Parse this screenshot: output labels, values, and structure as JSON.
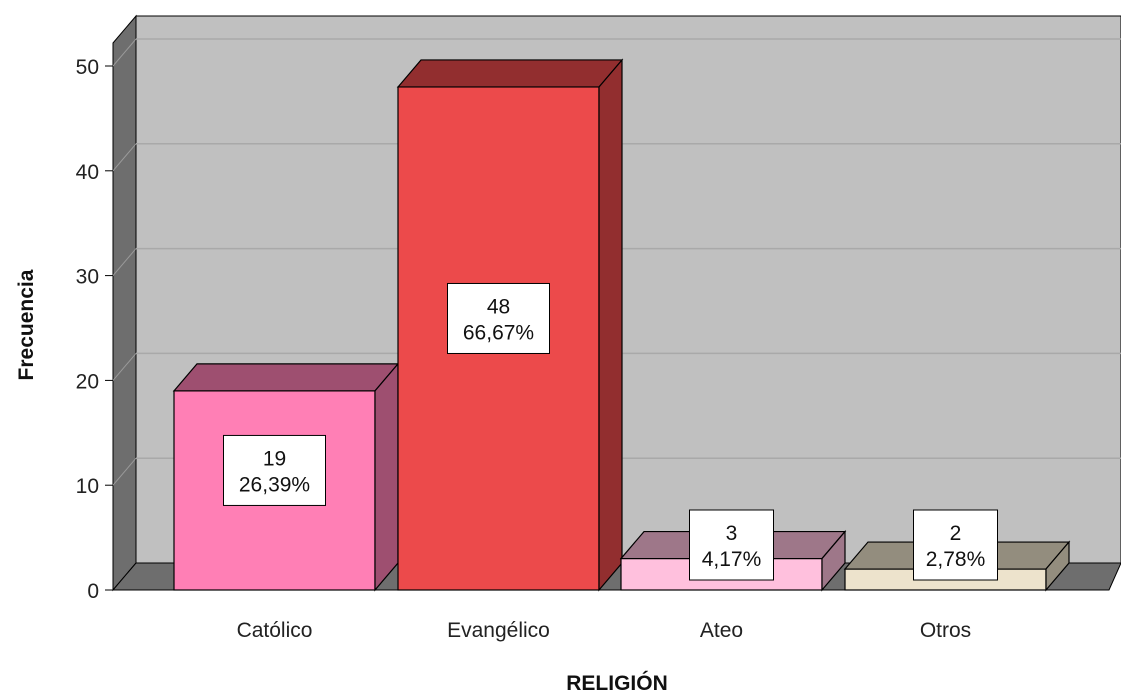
{
  "chart_data": {
    "type": "bar",
    "style": "3d",
    "categories": [
      "Católico",
      "Evangélico",
      "Ateo",
      "Otros"
    ],
    "values": [
      19,
      48,
      3,
      2
    ],
    "percent_labels": [
      "26,39%",
      "66,67%",
      "4,17%",
      "2,78%"
    ],
    "value_labels": [
      "19",
      "48",
      "3",
      "2"
    ],
    "colors": [
      "#ff7fb5",
      "#ec4a4b",
      "#ffc0dd",
      "#ede3cc"
    ],
    "xlabel": "RELIGIÓN",
    "ylabel": "Frecuencia",
    "ylim": [
      0,
      50
    ],
    "yticks": [
      "0",
      "10",
      "20",
      "30",
      "40",
      "50"
    ],
    "grid": true,
    "plot_background": "#c0c0c0"
  }
}
